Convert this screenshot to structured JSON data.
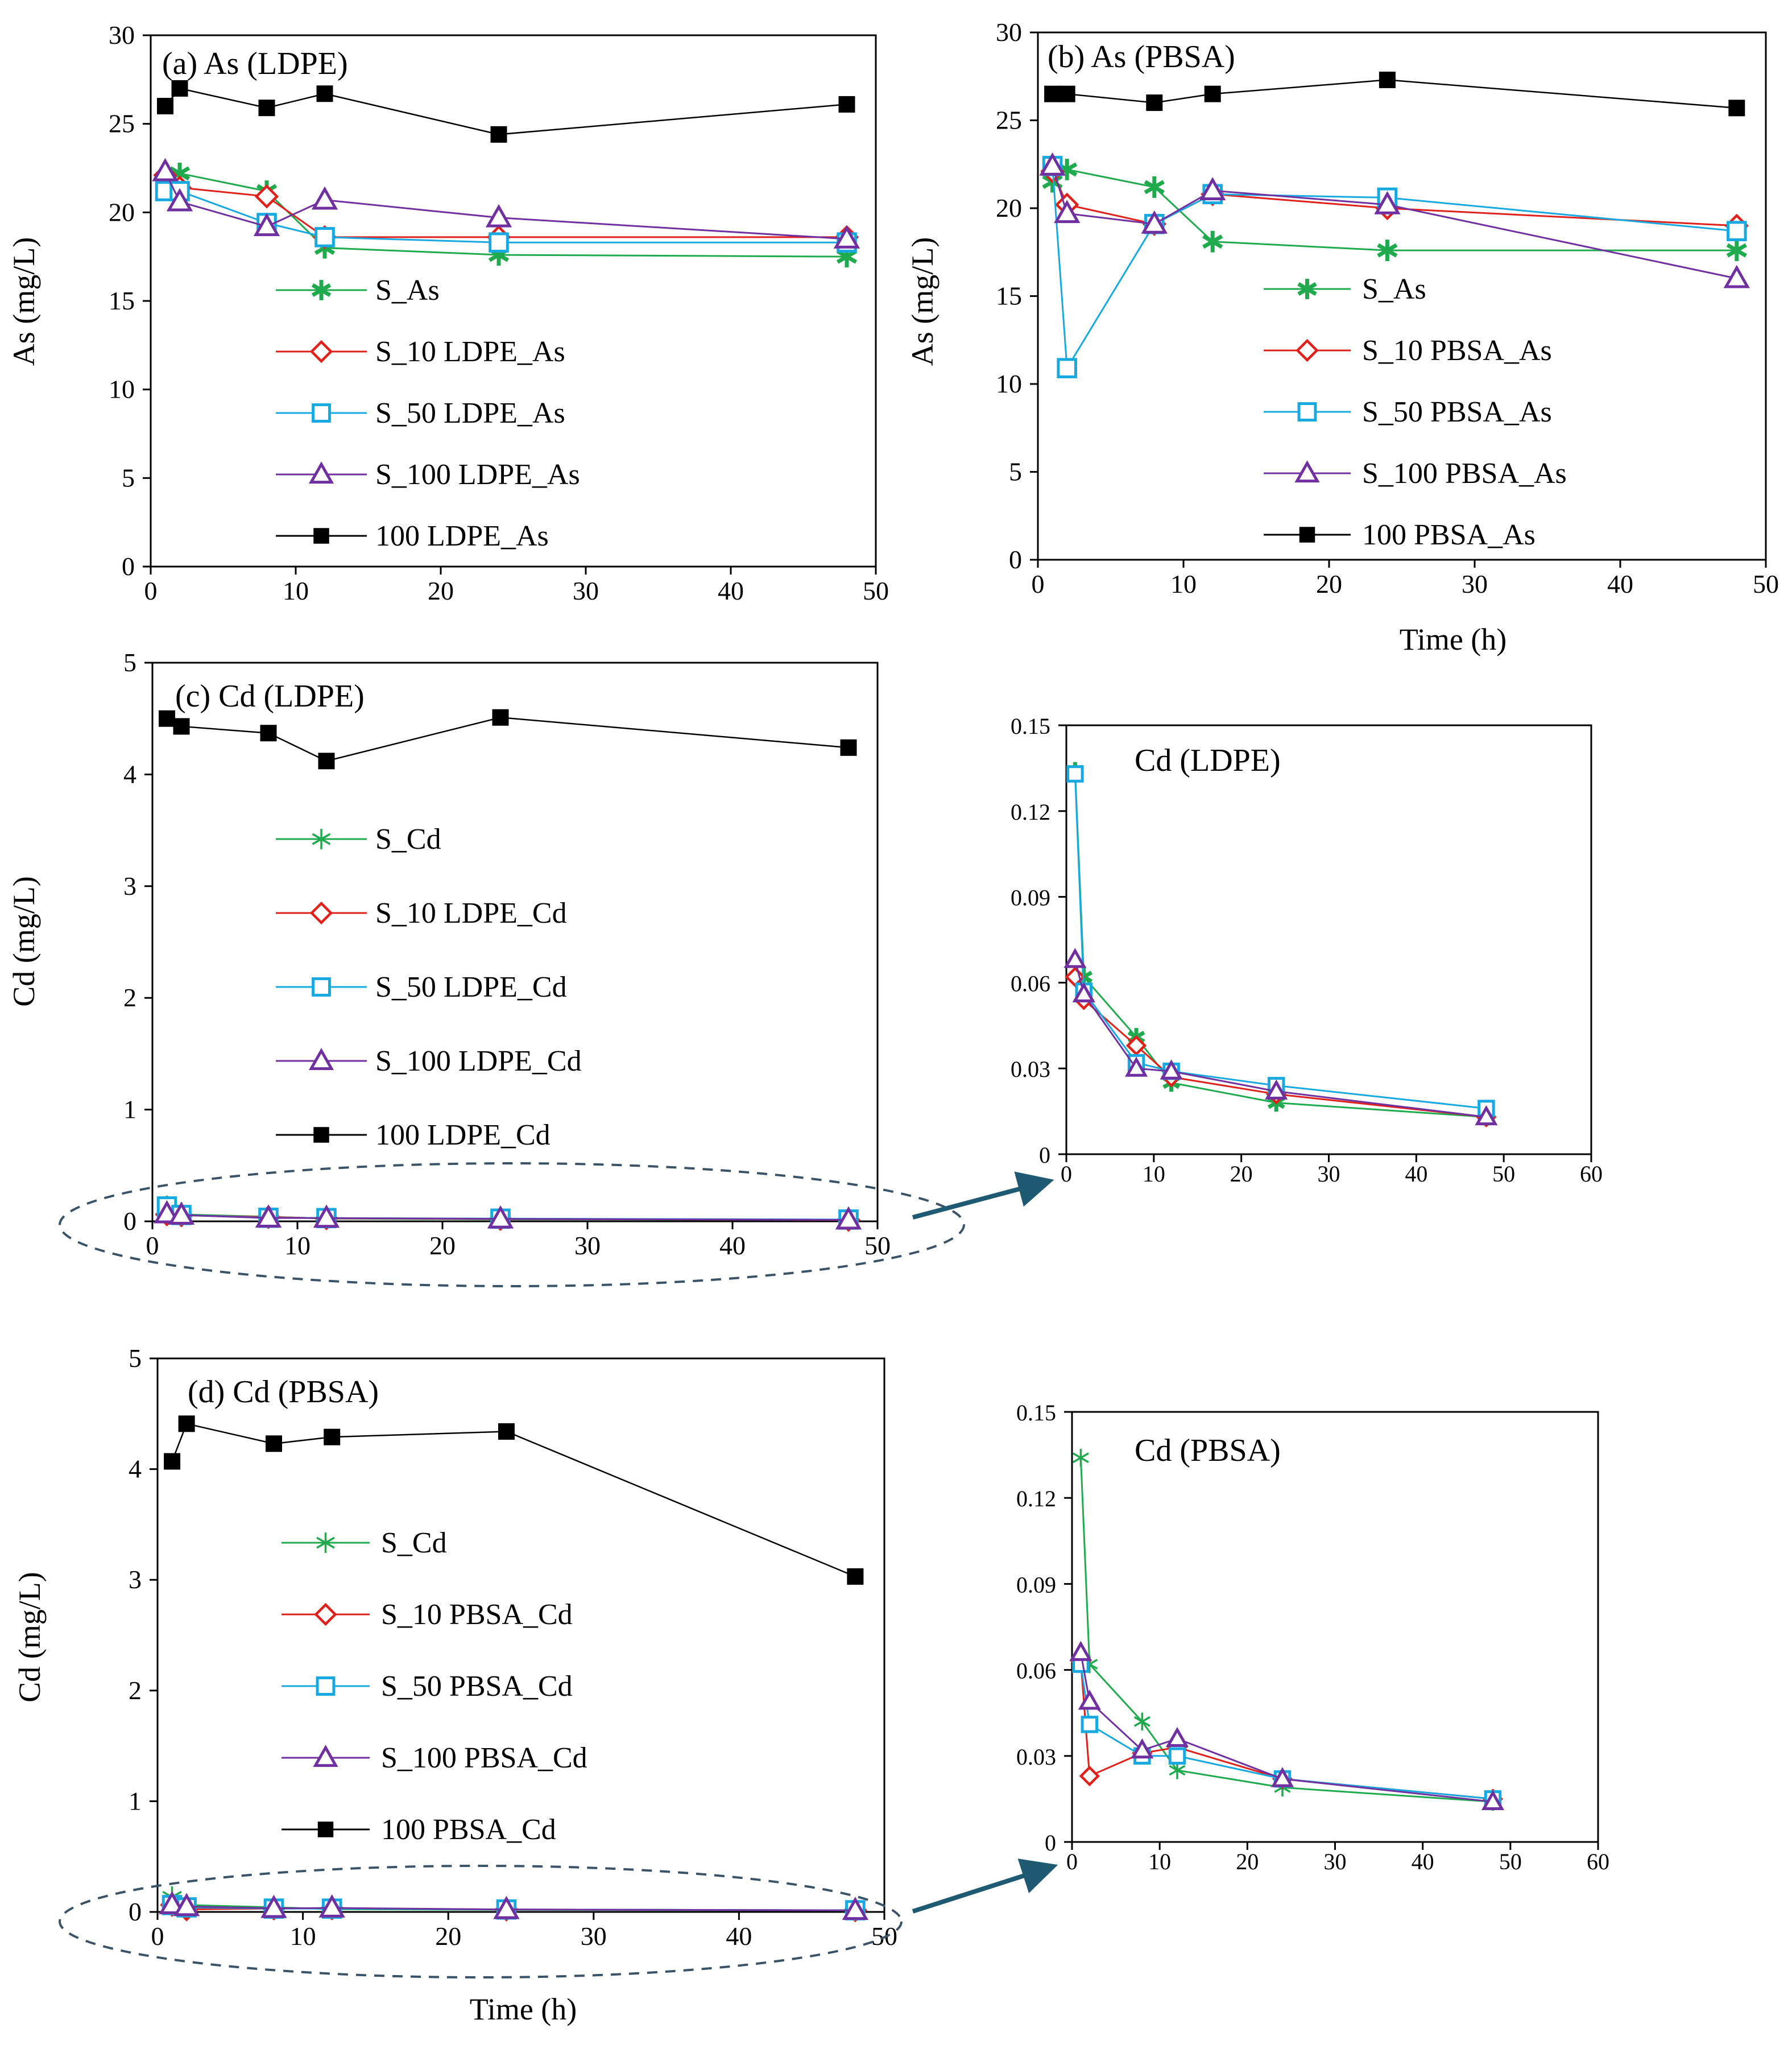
{
  "chart_data": [
    {
      "id": "a",
      "type": "line",
      "title": "(a) As (LDPE)",
      "xlabel": "",
      "ylabel": "As (mg/L)",
      "xlim": [
        0,
        50
      ],
      "ylim": [
        0,
        30
      ],
      "xticks": [
        0,
        10,
        20,
        30,
        40,
        50
      ],
      "yticks": [
        0,
        5,
        10,
        15,
        20,
        25,
        30
      ],
      "legend": "center-left",
      "series": [
        {
          "name": "S_As",
          "color": "#1faa4e",
          "marker": "star-bold",
          "x": [
            1,
            2,
            8,
            12,
            24,
            48
          ],
          "values": [
            21.5,
            22.2,
            21.2,
            18.0,
            17.6,
            17.5
          ]
        },
        {
          "name": "S_10 LDPE_As",
          "color": "#e0201b",
          "marker": "diamond",
          "x": [
            1,
            2,
            8,
            12,
            24,
            48
          ],
          "values": [
            22.1,
            21.4,
            20.9,
            18.6,
            18.6,
            18.6
          ]
        },
        {
          "name": "S_50 LDPE_As",
          "color": "#17a9e0",
          "marker": "square-open",
          "x": [
            1,
            2,
            8,
            12,
            24,
            48
          ],
          "values": [
            21.2,
            21.2,
            19.4,
            18.6,
            18.3,
            18.3
          ]
        },
        {
          "name": "S_100 LDPE_As",
          "color": "#7030a0",
          "marker": "triangle",
          "x": [
            1,
            2,
            8,
            12,
            24,
            48
          ],
          "values": [
            22.3,
            20.6,
            19.2,
            20.7,
            19.7,
            18.5
          ]
        },
        {
          "name": "100 LDPE_As",
          "color": "#000000",
          "marker": "square-filled",
          "x": [
            1,
            2,
            8,
            12,
            24,
            48
          ],
          "values": [
            26.0,
            27.0,
            25.9,
            26.7,
            24.4,
            26.1
          ]
        }
      ]
    },
    {
      "id": "b",
      "type": "line",
      "title": "(b) As (PBSA)",
      "xlabel": "Time (h)",
      "ylabel": "As (mg/L)",
      "xlim": [
        0,
        50
      ],
      "ylim": [
        0,
        30
      ],
      "xticks": [
        0,
        10,
        20,
        30,
        40,
        50
      ],
      "yticks": [
        0,
        5,
        10,
        15,
        20,
        25,
        30
      ],
      "legend": "center-right",
      "series": [
        {
          "name": "S_As",
          "color": "#1faa4e",
          "marker": "star-bold",
          "x": [
            1,
            2,
            8,
            12,
            24,
            48
          ],
          "values": [
            21.5,
            22.2,
            21.2,
            18.1,
            17.6,
            17.6
          ]
        },
        {
          "name": "S_10 PBSA_As",
          "color": "#e0201b",
          "marker": "diamond",
          "x": [
            1,
            2,
            8,
            12,
            24,
            48
          ],
          "values": [
            22.1,
            20.2,
            19.1,
            20.8,
            20.0,
            19.0
          ]
        },
        {
          "name": "S_50 PBSA_As",
          "color": "#17a9e0",
          "marker": "square-open",
          "x": [
            1,
            2,
            8,
            12,
            24,
            48
          ],
          "values": [
            22.4,
            10.9,
            19.1,
            20.8,
            20.6,
            18.7
          ]
        },
        {
          "name": "S_100 PBSA_As",
          "color": "#7030a0",
          "marker": "triangle",
          "x": [
            1,
            2,
            8,
            12,
            24,
            48
          ],
          "values": [
            22.4,
            19.7,
            19.1,
            21.0,
            20.2,
            16.0
          ]
        },
        {
          "name": "100 PBSA_As",
          "color": "#000000",
          "marker": "square-filled",
          "x": [
            1,
            2,
            8,
            12,
            24,
            48
          ],
          "values": [
            26.5,
            26.5,
            26.0,
            26.5,
            27.3,
            25.7
          ]
        }
      ]
    },
    {
      "id": "c",
      "type": "line",
      "title": "(c) Cd (LDPE)",
      "xlabel": "",
      "ylabel": "Cd (mg/L)",
      "xlim": [
        0,
        50
      ],
      "ylim": [
        0,
        5
      ],
      "xticks": [
        0,
        10,
        20,
        30,
        40,
        50
      ],
      "yticks": [
        0,
        1,
        2,
        3,
        4,
        5
      ],
      "legend": "center-left",
      "series": [
        {
          "name": "S_Cd",
          "color": "#1faa4e",
          "marker": "star-thin",
          "x": [
            1,
            2,
            8,
            12,
            24,
            48
          ],
          "values": [
            0.134,
            0.062,
            0.041,
            0.025,
            0.018,
            0.013
          ]
        },
        {
          "name": "S_10 LDPE_Cd",
          "color": "#e0201b",
          "marker": "diamond",
          "x": [
            1,
            2,
            8,
            12,
            24,
            48
          ],
          "values": [
            0.062,
            0.054,
            0.038,
            0.027,
            0.021,
            0.013
          ]
        },
        {
          "name": "S_50 LDPE_Cd",
          "color": "#17a9e0",
          "marker": "square-open",
          "x": [
            1,
            2,
            8,
            12,
            24,
            48
          ],
          "values": [
            0.133,
            0.057,
            0.032,
            0.029,
            0.024,
            0.016
          ]
        },
        {
          "name": "S_100 LDPE_Cd",
          "color": "#7030a0",
          "marker": "triangle",
          "x": [
            1,
            2,
            8,
            12,
            24,
            48
          ],
          "values": [
            0.068,
            0.056,
            0.03,
            0.029,
            0.022,
            0.013
          ]
        },
        {
          "name": "100 LDPE_Cd",
          "color": "#000000",
          "marker": "square-filled",
          "x": [
            1,
            2,
            8,
            12,
            24,
            48
          ],
          "values": [
            4.5,
            4.43,
            4.37,
            4.12,
            4.51,
            4.24
          ]
        }
      ]
    },
    {
      "id": "c-inset",
      "type": "line",
      "title": "Cd (LDPE)",
      "xlabel": "",
      "ylabel": "",
      "xlim": [
        0,
        60
      ],
      "ylim": [
        0,
        0.15
      ],
      "xticks": [
        0,
        10,
        20,
        30,
        40,
        50,
        60
      ],
      "yticks": [
        0,
        0.03,
        0.06,
        0.09,
        0.12,
        0.15
      ],
      "ytick_labels": [
        "0",
        "0.03",
        "0.06",
        "0.09",
        "0.12",
        "0.15"
      ],
      "series": [
        {
          "name": "S_Cd",
          "color": "#1faa4e",
          "marker": "star-bold",
          "x": [
            1,
            2,
            8,
            12,
            24,
            48
          ],
          "values": [
            0.134,
            0.062,
            0.041,
            0.025,
            0.018,
            0.013
          ]
        },
        {
          "name": "S_10 LDPE_Cd",
          "color": "#e0201b",
          "marker": "diamond",
          "x": [
            1,
            2,
            8,
            12,
            24,
            48
          ],
          "values": [
            0.062,
            0.054,
            0.038,
            0.027,
            0.021,
            0.013
          ]
        },
        {
          "name": "S_50 LDPE_Cd",
          "color": "#17a9e0",
          "marker": "square-open",
          "x": [
            1,
            2,
            8,
            12,
            24,
            48
          ],
          "values": [
            0.133,
            0.057,
            0.032,
            0.029,
            0.024,
            0.016
          ]
        },
        {
          "name": "S_100 LDPE_Cd",
          "color": "#7030a0",
          "marker": "triangle",
          "x": [
            1,
            2,
            8,
            12,
            24,
            48
          ],
          "values": [
            0.068,
            0.056,
            0.03,
            0.029,
            0.022,
            0.013
          ]
        }
      ]
    },
    {
      "id": "d",
      "type": "line",
      "title": "(d) Cd (PBSA)",
      "xlabel": "Time (h)",
      "ylabel": "Cd (mg/L)",
      "xlim": [
        0,
        50
      ],
      "ylim": [
        0,
        5
      ],
      "xticks": [
        0,
        10,
        20,
        30,
        40,
        50
      ],
      "yticks": [
        0,
        1,
        2,
        3,
        4,
        5
      ],
      "legend": "center-left",
      "series": [
        {
          "name": "S_Cd",
          "color": "#1faa4e",
          "marker": "star-thin",
          "x": [
            1,
            2,
            8,
            12,
            24,
            48
          ],
          "values": [
            0.134,
            0.062,
            0.042,
            0.025,
            0.019,
            0.014
          ]
        },
        {
          "name": "S_10 PBSA_Cd",
          "color": "#e0201b",
          "marker": "diamond",
          "x": [
            1,
            2,
            8,
            12,
            24,
            48
          ],
          "values": [
            0.063,
            0.023,
            0.031,
            0.033,
            0.022,
            0.015
          ]
        },
        {
          "name": "S_50 PBSA_Cd",
          "color": "#17a9e0",
          "marker": "square-open",
          "x": [
            1,
            2,
            8,
            12,
            24,
            48
          ],
          "values": [
            0.062,
            0.041,
            0.03,
            0.03,
            0.022,
            0.015
          ]
        },
        {
          "name": "S_100 PBSA_Cd",
          "color": "#7030a0",
          "marker": "triangle",
          "x": [
            1,
            2,
            8,
            12,
            24,
            48
          ],
          "values": [
            0.066,
            0.049,
            0.032,
            0.036,
            0.022,
            0.014
          ]
        },
        {
          "name": "100 PBSA_Cd",
          "color": "#000000",
          "marker": "square-filled",
          "x": [
            1,
            2,
            8,
            12,
            24,
            48
          ],
          "values": [
            4.07,
            4.41,
            4.23,
            4.29,
            4.34,
            3.03
          ]
        }
      ]
    },
    {
      "id": "d-inset",
      "type": "line",
      "title": "Cd (PBSA)",
      "xlabel": "",
      "ylabel": "",
      "xlim": [
        0,
        60
      ],
      "ylim": [
        0,
        0.15
      ],
      "xticks": [
        0,
        10,
        20,
        30,
        40,
        50,
        60
      ],
      "yticks": [
        0,
        0.03,
        0.06,
        0.09,
        0.12,
        0.15
      ],
      "ytick_labels": [
        "0",
        "0.03",
        "0.06",
        "0.09",
        "0.12",
        "0.15"
      ],
      "series": [
        {
          "name": "S_Cd",
          "color": "#1faa4e",
          "marker": "star-thin",
          "x": [
            1,
            2,
            8,
            12,
            24,
            48
          ],
          "values": [
            0.134,
            0.062,
            0.042,
            0.025,
            0.019,
            0.014
          ]
        },
        {
          "name": "S_10 PBSA_Cd",
          "color": "#e0201b",
          "marker": "diamond",
          "x": [
            1,
            2,
            8,
            12,
            24,
            48
          ],
          "values": [
            0.063,
            0.023,
            0.031,
            0.033,
            0.022,
            0.015
          ]
        },
        {
          "name": "S_50 PBSA_Cd",
          "color": "#17a9e0",
          "marker": "square-open",
          "x": [
            1,
            2,
            8,
            12,
            24,
            48
          ],
          "values": [
            0.062,
            0.041,
            0.03,
            0.03,
            0.022,
            0.015
          ]
        },
        {
          "name": "S_100 PBSA_Cd",
          "color": "#7030a0",
          "marker": "triangle",
          "x": [
            1,
            2,
            8,
            12,
            24,
            48
          ],
          "values": [
            0.066,
            0.049,
            0.032,
            0.036,
            0.022,
            0.014
          ]
        }
      ]
    }
  ]
}
